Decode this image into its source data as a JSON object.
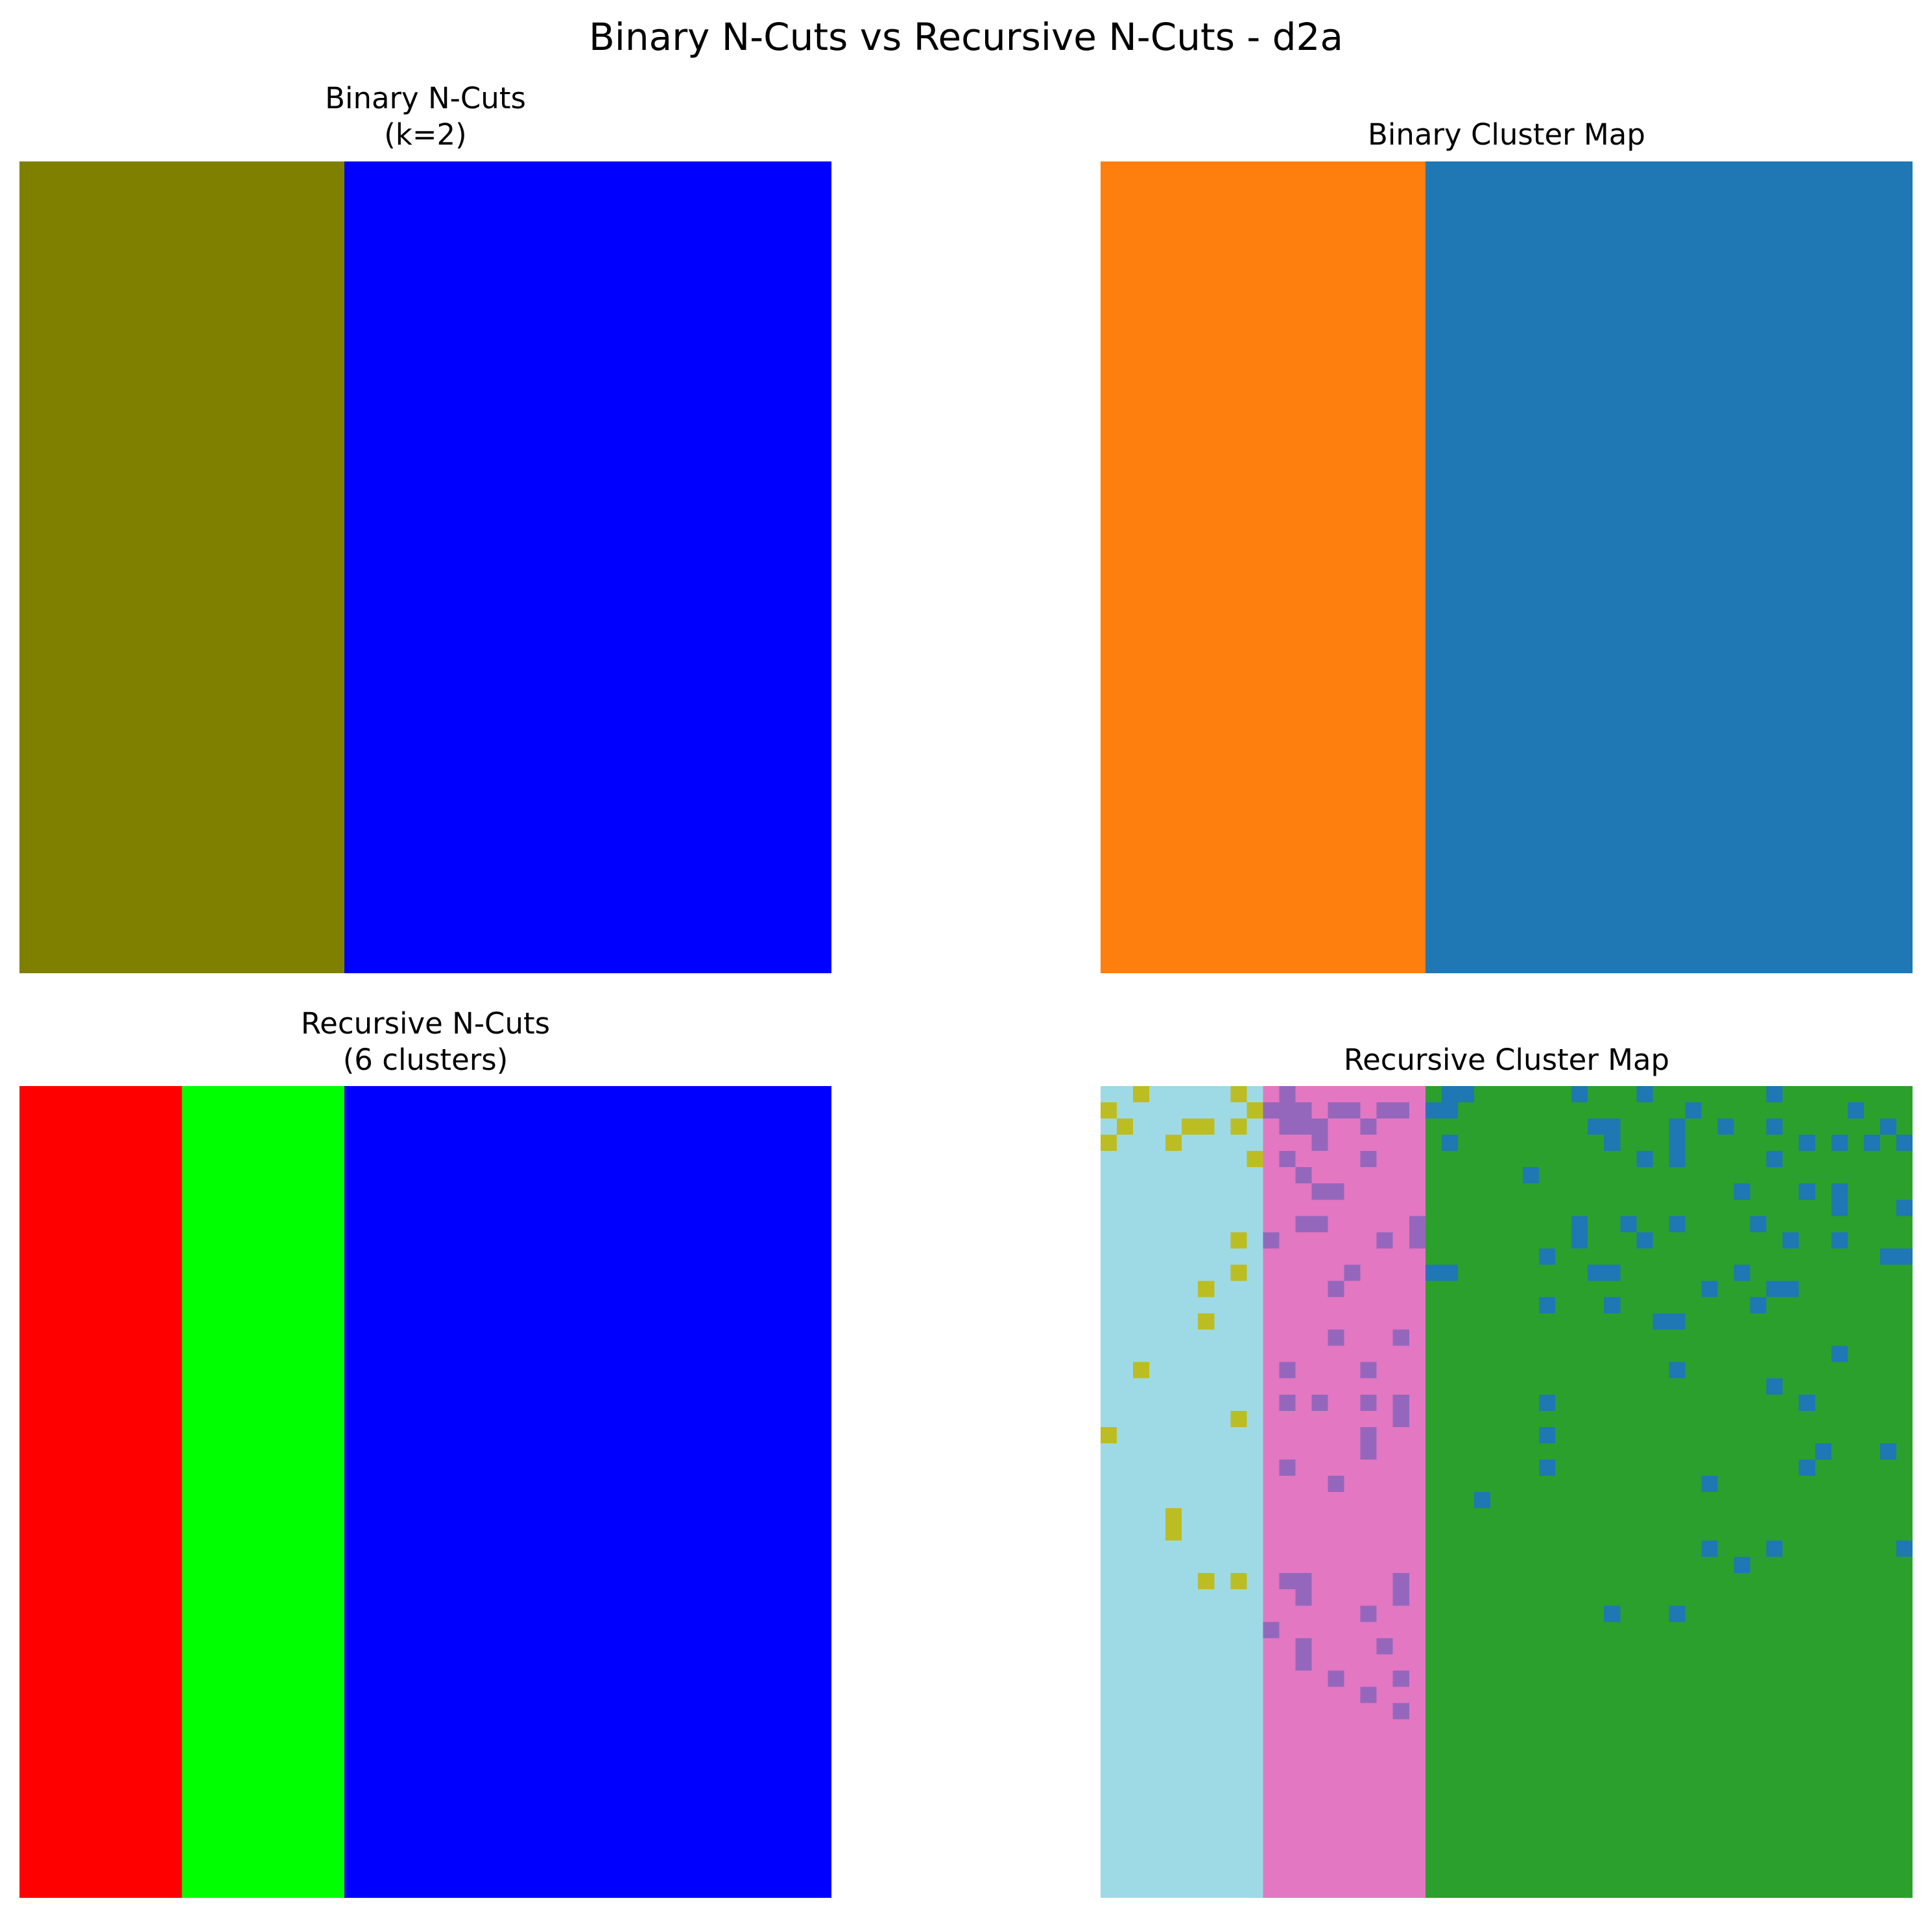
{
  "title": "Binary N-Cuts vs Recursive N-Cuts - d2a",
  "panels": {
    "binary_seg": {
      "title_line1": "Binary N-Cuts",
      "title_line2": "(k=2)"
    },
    "binary_map": {
      "title": "Binary Cluster Map"
    },
    "recursive_seg": {
      "title_line1": "Recursive N-Cuts",
      "title_line2": "(6 clusters)"
    },
    "recursive_map": {
      "title": "Recursive Cluster Map"
    }
  },
  "chart_data": [
    {
      "type": "heatmap",
      "title": "Binary N-Cuts (k=2)",
      "grid": false,
      "axes": "off",
      "columns": 50,
      "rows": 50,
      "bands": [
        {
          "from_col": 0,
          "to_col": 20,
          "color": "#808000"
        },
        {
          "from_col": 20,
          "to_col": 50,
          "color": "#0000ff"
        }
      ]
    },
    {
      "type": "heatmap",
      "title": "Binary Cluster Map",
      "grid": false,
      "axes": "off",
      "columns": 50,
      "rows": 50,
      "bands": [
        {
          "from_col": 0,
          "to_col": 20,
          "color": "#ff7f0e"
        },
        {
          "from_col": 20,
          "to_col": 50,
          "color": "#1f77b4"
        }
      ]
    },
    {
      "type": "heatmap",
      "title": "Recursive N-Cuts (6 clusters)",
      "grid": false,
      "axes": "off",
      "columns": 50,
      "rows": 50,
      "bands": [
        {
          "from_col": 0,
          "to_col": 10,
          "color": "#ff0000"
        },
        {
          "from_col": 10,
          "to_col": 20,
          "color": "#00ff00"
        },
        {
          "from_col": 20,
          "to_col": 50,
          "color": "#0000ff"
        }
      ]
    },
    {
      "type": "heatmap",
      "title": "Recursive Cluster Map",
      "grid": false,
      "axes": "off",
      "columns": 50,
      "rows": 50,
      "bands": [
        {
          "from_col": 0,
          "to_col": 10,
          "color": "#9edae5"
        },
        {
          "from_col": 10,
          "to_col": 20,
          "color": "#e377c2"
        },
        {
          "from_col": 20,
          "to_col": 50,
          "color": "#2ca02c"
        }
      ],
      "speckle_colors": {
        "left": "#bcbd22",
        "middle": "#9467bd",
        "right": "#1f77b4"
      },
      "speckles": {
        "left": [
          [
            2,
            0
          ],
          [
            0,
            1
          ],
          [
            8,
            0
          ],
          [
            9,
            1
          ],
          [
            5,
            2
          ],
          [
            6,
            2
          ],
          [
            1,
            2
          ],
          [
            8,
            2
          ],
          [
            0,
            3
          ],
          [
            4,
            3
          ],
          [
            9,
            4
          ],
          [
            8,
            9
          ],
          [
            8,
            11
          ],
          [
            6,
            12
          ],
          [
            6,
            14
          ],
          [
            2,
            17
          ],
          [
            8,
            20
          ],
          [
            0,
            21
          ],
          [
            4,
            26
          ],
          [
            4,
            27
          ],
          [
            6,
            30
          ],
          [
            8,
            30
          ]
        ],
        "left_cols": [
          0,
          1,
          2,
          3,
          4,
          5,
          6,
          7,
          8,
          9
        ],
        "middle": [
          [
            11,
            0
          ],
          [
            11,
            1
          ],
          [
            10,
            1
          ],
          [
            12,
            1
          ],
          [
            14,
            1
          ],
          [
            15,
            1
          ],
          [
            17,
            1
          ],
          [
            18,
            1
          ],
          [
            11,
            2
          ],
          [
            12,
            2
          ],
          [
            13,
            2
          ],
          [
            16,
            2
          ],
          [
            13,
            3
          ],
          [
            11,
            4
          ],
          [
            16,
            4
          ],
          [
            12,
            5
          ],
          [
            13,
            6
          ],
          [
            14,
            6
          ],
          [
            12,
            8
          ],
          [
            13,
            8
          ],
          [
            19,
            8
          ],
          [
            10,
            9
          ],
          [
            17,
            9
          ],
          [
            19,
            9
          ],
          [
            15,
            11
          ],
          [
            14,
            12
          ],
          [
            14,
            15
          ],
          [
            18,
            15
          ],
          [
            11,
            17
          ],
          [
            16,
            17
          ],
          [
            11,
            19
          ],
          [
            13,
            19
          ],
          [
            16,
            19
          ],
          [
            18,
            19
          ],
          [
            18,
            20
          ],
          [
            16,
            21
          ],
          [
            16,
            22
          ],
          [
            11,
            23
          ],
          [
            14,
            24
          ],
          [
            11,
            30
          ],
          [
            12,
            30
          ],
          [
            18,
            30
          ],
          [
            12,
            31
          ],
          [
            18,
            31
          ],
          [
            16,
            32
          ],
          [
            10,
            33
          ],
          [
            12,
            34
          ],
          [
            17,
            34
          ],
          [
            12,
            35
          ],
          [
            14,
            36
          ],
          [
            18,
            36
          ],
          [
            16,
            37
          ],
          [
            18,
            38
          ]
        ],
        "right": [
          [
            21,
            0
          ],
          [
            22,
            0
          ],
          [
            29,
            0
          ],
          [
            33,
            0
          ],
          [
            41,
            0
          ],
          [
            20,
            1
          ],
          [
            21,
            1
          ],
          [
            36,
            1
          ],
          [
            46,
            1
          ],
          [
            30,
            2
          ],
          [
            31,
            2
          ],
          [
            35,
            2
          ],
          [
            38,
            2
          ],
          [
            41,
            2
          ],
          [
            48,
            2
          ],
          [
            21,
            3
          ],
          [
            31,
            3
          ],
          [
            35,
            3
          ],
          [
            43,
            3
          ],
          [
            45,
            3
          ],
          [
            47,
            3
          ],
          [
            49,
            3
          ],
          [
            35,
            4
          ],
          [
            33,
            4
          ],
          [
            41,
            4
          ],
          [
            26,
            5
          ],
          [
            39,
            6
          ],
          [
            43,
            6
          ],
          [
            45,
            6
          ],
          [
            45,
            7
          ],
          [
            49,
            7
          ],
          [
            29,
            8
          ],
          [
            32,
            8
          ],
          [
            35,
            8
          ],
          [
            40,
            8
          ],
          [
            29,
            9
          ],
          [
            33,
            9
          ],
          [
            42,
            9
          ],
          [
            45,
            9
          ],
          [
            27,
            10
          ],
          [
            48,
            10
          ],
          [
            49,
            10
          ],
          [
            20,
            11
          ],
          [
            21,
            11
          ],
          [
            30,
            11
          ],
          [
            31,
            11
          ],
          [
            39,
            11
          ],
          [
            37,
            12
          ],
          [
            41,
            12
          ],
          [
            42,
            12
          ],
          [
            27,
            13
          ],
          [
            31,
            13
          ],
          [
            40,
            13
          ],
          [
            34,
            14
          ],
          [
            35,
            14
          ],
          [
            45,
            16
          ],
          [
            35,
            17
          ],
          [
            41,
            18
          ],
          [
            27,
            19
          ],
          [
            43,
            19
          ],
          [
            27,
            21
          ],
          [
            44,
            22
          ],
          [
            48,
            22
          ],
          [
            27,
            23
          ],
          [
            43,
            23
          ],
          [
            37,
            24
          ],
          [
            23,
            25
          ],
          [
            37,
            28
          ],
          [
            41,
            28
          ],
          [
            49,
            28
          ],
          [
            39,
            29
          ],
          [
            31,
            32
          ],
          [
            35,
            32
          ]
        ]
      }
    }
  ]
}
